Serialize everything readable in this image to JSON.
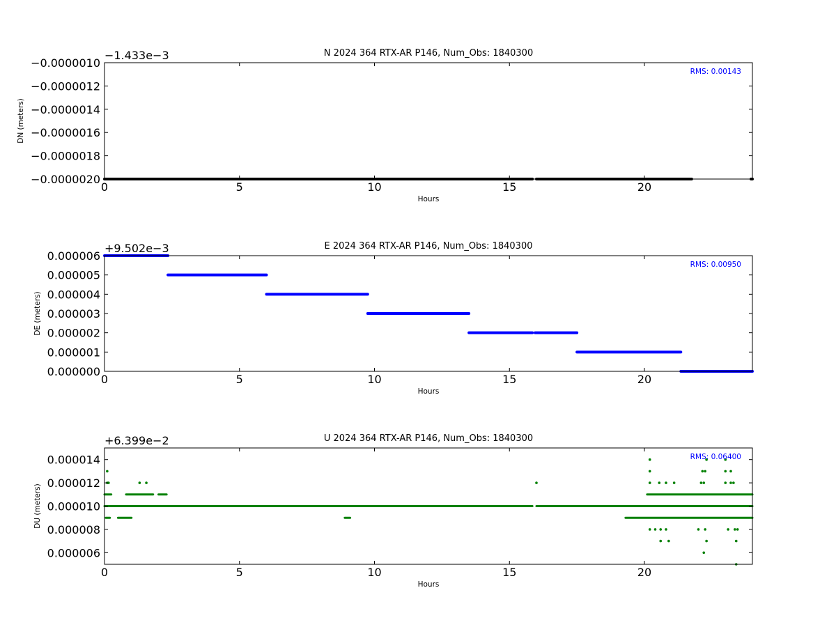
{
  "chart_data": [
    {
      "type": "scatter",
      "title": "N 2024 364 RTX-AR  P146, Num_Obs: 1840300",
      "xlabel": "Hours",
      "ylabel": "DN (meters)",
      "y_offset_label": "−1.433e−3",
      "rms_label": "RMS:  0.00143",
      "color": "#000000",
      "xlim": [
        0,
        24
      ],
      "ylim": [
        -2e-06,
        -1e-06
      ],
      "xticks": [
        0,
        5,
        10,
        15,
        20
      ],
      "xtick_labels": [
        "0",
        "5",
        "10",
        "15",
        "20"
      ],
      "yticks": [
        -1e-06,
        -1.2e-06,
        -1.4e-06,
        -1.6e-06,
        -1.8e-06,
        -2e-06
      ],
      "ytick_labels": [
        "−0.0000010",
        "−0.0000012",
        "−0.0000014",
        "−0.0000016",
        "−0.0000018",
        "−0.0000020"
      ],
      "series": [
        {
          "segments": [
            {
              "x0": 0.0,
              "x1": 15.85,
              "y": -2e-06
            },
            {
              "x0": 16.0,
              "x1": 21.75,
              "y": -2e-06
            },
            {
              "x0": 23.95,
              "x1": 24.0,
              "y": -2e-06
            }
          ]
        }
      ]
    },
    {
      "type": "scatter",
      "title": "E 2024 364 RTX-AR  P146, Num_Obs: 1840300",
      "xlabel": "Hours",
      "ylabel": "DE (meters)",
      "y_offset_label": "+9.502e−3",
      "rms_label": "RMS:  0.00950",
      "color": "#0000ff",
      "xlim": [
        0,
        24
      ],
      "ylim": [
        0,
        6e-06
      ],
      "xticks": [
        0,
        5,
        10,
        15,
        20
      ],
      "xtick_labels": [
        "0",
        "5",
        "10",
        "15",
        "20"
      ],
      "yticks": [
        6e-06,
        5e-06,
        4e-06,
        3e-06,
        2e-06,
        1e-06,
        0
      ],
      "ytick_labels": [
        "0.000006",
        "0.000005",
        "0.000004",
        "0.000003",
        "0.000002",
        "0.000001",
        "0.000000"
      ],
      "series": [
        {
          "segments": [
            {
              "x0": 0.0,
              "x1": 2.35,
              "y": 6e-06
            },
            {
              "x0": 2.35,
              "x1": 6.0,
              "y": 5e-06
            },
            {
              "x0": 6.0,
              "x1": 9.75,
              "y": 4e-06
            },
            {
              "x0": 9.75,
              "x1": 13.5,
              "y": 3e-06
            },
            {
              "x0": 13.5,
              "x1": 15.85,
              "y": 2e-06
            },
            {
              "x0": 15.95,
              "x1": 17.5,
              "y": 2e-06
            },
            {
              "x0": 17.5,
              "x1": 21.35,
              "y": 1e-06
            },
            {
              "x0": 21.35,
              "x1": 24.0,
              "y": 0.0
            }
          ]
        }
      ]
    },
    {
      "type": "scatter",
      "title": "U 2024 364 RTX-AR  P146, Num_Obs: 1840300",
      "xlabel": "Hours",
      "ylabel": "DU (meters)",
      "y_offset_label": "+6.399e−2",
      "rms_label": "RMS:  0.06400",
      "color": "#008000",
      "xlim": [
        0,
        24
      ],
      "ylim": [
        5e-06,
        1.5e-05
      ],
      "xticks": [
        0,
        5,
        10,
        15,
        20
      ],
      "xtick_labels": [
        "0",
        "5",
        "10",
        "15",
        "20"
      ],
      "yticks": [
        1.4e-05,
        1.2e-05,
        1e-05,
        8e-06,
        6e-06
      ],
      "ytick_labels": [
        "0.000014",
        "0.000012",
        "0.000010",
        "0.000008",
        "0.000006"
      ],
      "series": [
        {
          "segments": [
            {
              "x0": 0.0,
              "x1": 15.85,
              "y": 1e-05
            },
            {
              "x0": 16.0,
              "x1": 24.0,
              "y": 1e-05
            },
            {
              "x0": 0.0,
              "x1": 0.25,
              "y": 1.1e-05
            },
            {
              "x0": 0.8,
              "x1": 1.8,
              "y": 1.1e-05
            },
            {
              "x0": 2.0,
              "x1": 2.3,
              "y": 1.1e-05
            },
            {
              "x0": 20.1,
              "x1": 24.0,
              "y": 1.1e-05
            },
            {
              "x0": 0.05,
              "x1": 0.2,
              "y": 9e-06
            },
            {
              "x0": 0.5,
              "x1": 1.0,
              "y": 9e-06
            },
            {
              "x0": 8.9,
              "x1": 9.1,
              "y": 9e-06
            },
            {
              "x0": 19.3,
              "x1": 24.0,
              "y": 9e-06
            }
          ],
          "points": [
            {
              "x": 0.1,
              "y": 1.3e-05
            },
            {
              "x": 0.1,
              "y": 1.2e-05
            },
            {
              "x": 0.15,
              "y": 1.2e-05
            },
            {
              "x": 1.3,
              "y": 1.2e-05
            },
            {
              "x": 1.55,
              "y": 1.2e-05
            },
            {
              "x": 16.0,
              "y": 1.2e-05
            },
            {
              "x": 20.2,
              "y": 1.4e-05
            },
            {
              "x": 20.2,
              "y": 1.3e-05
            },
            {
              "x": 20.2,
              "y": 1.2e-05
            },
            {
              "x": 20.55,
              "y": 1.2e-05
            },
            {
              "x": 20.8,
              "y": 1.2e-05
            },
            {
              "x": 21.1,
              "y": 1.2e-05
            },
            {
              "x": 20.2,
              "y": 8e-06
            },
            {
              "x": 20.4,
              "y": 8e-06
            },
            {
              "x": 20.6,
              "y": 8e-06
            },
            {
              "x": 20.8,
              "y": 8e-06
            },
            {
              "x": 20.6,
              "y": 7e-06
            },
            {
              "x": 20.9,
              "y": 7e-06
            },
            {
              "x": 22.1,
              "y": 1.2e-05
            },
            {
              "x": 22.2,
              "y": 1.2e-05
            },
            {
              "x": 22.3,
              "y": 1.4e-05
            },
            {
              "x": 22.15,
              "y": 1.3e-05
            },
            {
              "x": 22.25,
              "y": 1.3e-05
            },
            {
              "x": 22.25,
              "y": 8e-06
            },
            {
              "x": 22.3,
              "y": 7e-06
            },
            {
              "x": 22.2,
              "y": 6e-06
            },
            {
              "x": 22.0,
              "y": 8e-06
            },
            {
              "x": 23.0,
              "y": 1.3e-05
            },
            {
              "x": 23.0,
              "y": 1.2e-05
            },
            {
              "x": 23.2,
              "y": 1.2e-05
            },
            {
              "x": 23.3,
              "y": 1.2e-05
            },
            {
              "x": 23.0,
              "y": 1.4e-05
            },
            {
              "x": 23.2,
              "y": 1.3e-05
            },
            {
              "x": 23.35,
              "y": 8e-06
            },
            {
              "x": 23.45,
              "y": 8e-06
            },
            {
              "x": 23.4,
              "y": 7e-06
            },
            {
              "x": 23.4,
              "y": 5e-06
            },
            {
              "x": 23.1,
              "y": 8e-06
            }
          ]
        }
      ]
    }
  ]
}
